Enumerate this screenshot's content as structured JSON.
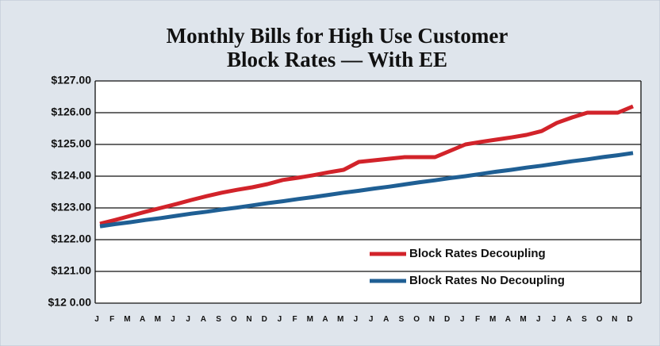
{
  "chart_data": {
    "type": "line",
    "title": [
      "Monthly Bills for High Use Customer",
      "Block Rates — With EE"
    ],
    "categories": [
      "J",
      "F",
      "M",
      "A",
      "M",
      "J",
      "J",
      "A",
      "S",
      "O",
      "N",
      "D",
      "J",
      "F",
      "M",
      "A",
      "M",
      "J",
      "J",
      "A",
      "S",
      "O",
      "N",
      "D",
      "J",
      "F",
      "M",
      "A",
      "M",
      "J",
      "J",
      "A",
      "S",
      "O",
      "N",
      "D"
    ],
    "series": [
      {
        "name": "Block Rates Decoupling",
        "color": "#d2232a",
        "values": [
          122.5,
          122.62,
          122.75,
          122.88,
          123.0,
          123.12,
          123.25,
          123.37,
          123.48,
          123.57,
          123.65,
          123.75,
          123.88,
          123.95,
          124.03,
          124.12,
          124.2,
          124.45,
          124.5,
          124.55,
          124.6,
          124.6,
          124.6,
          124.8,
          125.0,
          125.08,
          125.15,
          125.22,
          125.3,
          125.42,
          125.68,
          125.85,
          126.0,
          126.0,
          126.0,
          126.2
        ]
      },
      {
        "name": "Block Rates No Decoupling",
        "color": "#1f5f94",
        "values": [
          122.42,
          122.49,
          122.55,
          122.62,
          122.68,
          122.75,
          122.82,
          122.88,
          122.95,
          123.01,
          123.08,
          123.15,
          123.21,
          123.28,
          123.34,
          123.41,
          123.48,
          123.54,
          123.61,
          123.67,
          123.74,
          123.81,
          123.87,
          123.94,
          124.0,
          124.07,
          124.14,
          124.2,
          124.27,
          124.33,
          124.4,
          124.47,
          124.53,
          124.6,
          124.66,
          124.73
        ]
      }
    ],
    "ylim": [
      120,
      127
    ],
    "yticks": [
      {
        "value": 120,
        "label": "$12 0.00"
      },
      {
        "value": 121,
        "label": "$121.00"
      },
      {
        "value": 122,
        "label": "$122.00"
      },
      {
        "value": 123,
        "label": "$123.00"
      },
      {
        "value": 124,
        "label": "$124.00"
      },
      {
        "value": 125,
        "label": "$125.00"
      },
      {
        "value": 126,
        "label": "$126.00"
      },
      {
        "value": 127,
        "label": "$127.00"
      }
    ],
    "grid": true
  }
}
